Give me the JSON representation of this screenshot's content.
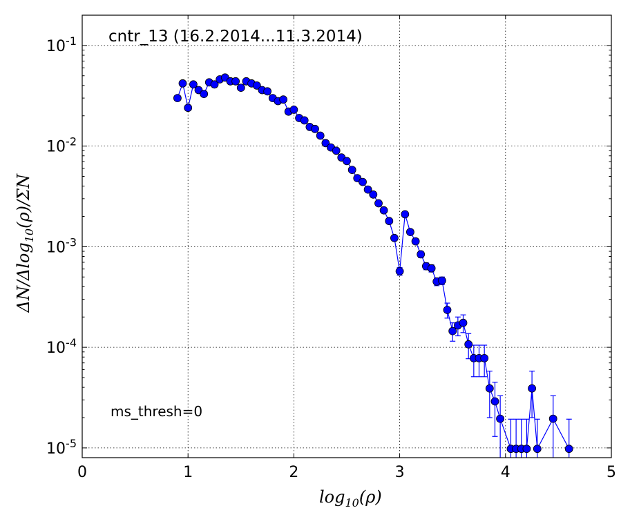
{
  "chart_data": {
    "type": "scatter",
    "title": "cntr_13 (16.2.2014...11.3.2014)",
    "annotation": "ms_thresh=0",
    "xlabel": "log10(ρ)",
    "ylabel": "ΔN/Δlog10(ρ)/ΣN",
    "xlim": [
      0,
      5
    ],
    "ylim": [
      8e-06,
      0.2
    ],
    "yscale": "log",
    "grid": true,
    "x_ticks": [
      0,
      1,
      2,
      3,
      4,
      5
    ],
    "x_tick_labels": [
      "0",
      "1",
      "2",
      "3",
      "4",
      "5"
    ],
    "y_ticks": [
      1e-05,
      0.0001,
      0.001,
      0.01,
      0.1
    ],
    "y_tick_labels": [
      {
        "base": "10",
        "exp": "-5"
      },
      {
        "base": "10",
        "exp": "-4"
      },
      {
        "base": "10",
        "exp": "-3"
      },
      {
        "base": "10",
        "exp": "-2"
      },
      {
        "base": "10",
        "exp": "-1"
      }
    ],
    "series_color": "#0000ff",
    "series": [
      {
        "marker": "circle",
        "line": true,
        "points": [
          {
            "x": 0.9,
            "y": 0.03,
            "err": 0
          },
          {
            "x": 0.95,
            "y": 0.042,
            "err": 0
          },
          {
            "x": 1.0,
            "y": 0.024,
            "err": 0
          },
          {
            "x": 1.05,
            "y": 0.041,
            "err": 0
          },
          {
            "x": 1.1,
            "y": 0.036,
            "err": 0
          },
          {
            "x": 1.15,
            "y": 0.033,
            "err": 0
          },
          {
            "x": 1.2,
            "y": 0.043,
            "err": 0
          },
          {
            "x": 1.25,
            "y": 0.041,
            "err": 0
          },
          {
            "x": 1.3,
            "y": 0.046,
            "err": 0
          },
          {
            "x": 1.35,
            "y": 0.048,
            "err": 0
          },
          {
            "x": 1.4,
            "y": 0.044,
            "err": 0
          },
          {
            "x": 1.45,
            "y": 0.044,
            "err": 0
          },
          {
            "x": 1.5,
            "y": 0.038,
            "err": 0
          },
          {
            "x": 1.55,
            "y": 0.044,
            "err": 0
          },
          {
            "x": 1.6,
            "y": 0.042,
            "err": 0
          },
          {
            "x": 1.65,
            "y": 0.04,
            "err": 0
          },
          {
            "x": 1.7,
            "y": 0.036,
            "err": 0
          },
          {
            "x": 1.75,
            "y": 0.035,
            "err": 0
          },
          {
            "x": 1.8,
            "y": 0.03,
            "err": 0
          },
          {
            "x": 1.85,
            "y": 0.028,
            "err": 0
          },
          {
            "x": 1.9,
            "y": 0.029,
            "err": 0
          },
          {
            "x": 1.95,
            "y": 0.022,
            "err": 0
          },
          {
            "x": 2.0,
            "y": 0.023,
            "err": 0
          },
          {
            "x": 2.05,
            "y": 0.019,
            "err": 0
          },
          {
            "x": 2.1,
            "y": 0.018,
            "err": 0
          },
          {
            "x": 2.15,
            "y": 0.0155,
            "err": 0
          },
          {
            "x": 2.2,
            "y": 0.0148,
            "err": 0
          },
          {
            "x": 2.25,
            "y": 0.0127,
            "err": 0
          },
          {
            "x": 2.3,
            "y": 0.0107,
            "err": 0
          },
          {
            "x": 2.35,
            "y": 0.0097,
            "err": 0
          },
          {
            "x": 2.4,
            "y": 0.009,
            "err": 0
          },
          {
            "x": 2.45,
            "y": 0.0077,
            "err": 0
          },
          {
            "x": 2.5,
            "y": 0.0071,
            "err": 0
          },
          {
            "x": 2.55,
            "y": 0.0058,
            "err": 0
          },
          {
            "x": 2.6,
            "y": 0.0048,
            "err": 0
          },
          {
            "x": 2.65,
            "y": 0.0044,
            "err": 0
          },
          {
            "x": 2.7,
            "y": 0.0037,
            "err": 0
          },
          {
            "x": 2.75,
            "y": 0.0033,
            "err": 0
          },
          {
            "x": 2.8,
            "y": 0.0027,
            "err": 0
          },
          {
            "x": 2.85,
            "y": 0.0023,
            "err": 0
          },
          {
            "x": 2.9,
            "y": 0.0018,
            "err": 0
          },
          {
            "x": 2.95,
            "y": 0.00122,
            "err": 6e-05
          },
          {
            "x": 3.0,
            "y": 0.00057,
            "err": 5e-05
          },
          {
            "x": 3.05,
            "y": 0.0021,
            "err": 0.0001
          },
          {
            "x": 3.1,
            "y": 0.0014,
            "err": 8e-05
          },
          {
            "x": 3.15,
            "y": 0.00113,
            "err": 7e-05
          },
          {
            "x": 3.2,
            "y": 0.00084,
            "err": 6e-05
          },
          {
            "x": 3.25,
            "y": 0.00064,
            "err": 5e-05
          },
          {
            "x": 3.3,
            "y": 0.00061,
            "err": 5e-05
          },
          {
            "x": 3.35,
            "y": 0.00045,
            "err": 4e-05
          },
          {
            "x": 3.4,
            "y": 0.00046,
            "err": 4e-05
          },
          {
            "x": 3.45,
            "y": 0.000235,
            "err": 4e-05
          },
          {
            "x": 3.5,
            "y": 0.000145,
            "err": 3e-05
          },
          {
            "x": 3.55,
            "y": 0.000165,
            "err": 3.5e-05
          },
          {
            "x": 3.6,
            "y": 0.000175,
            "err": 3.5e-05
          },
          {
            "x": 3.65,
            "y": 0.000107,
            "err": 3e-05
          },
          {
            "x": 3.7,
            "y": 7.8e-05,
            "err": 2.7e-05
          },
          {
            "x": 3.75,
            "y": 7.8e-05,
            "err": 2.7e-05
          },
          {
            "x": 3.8,
            "y": 7.8e-05,
            "err": 2.7e-05
          },
          {
            "x": 3.85,
            "y": 3.9e-05,
            "err": 1.9e-05
          },
          {
            "x": 3.9,
            "y": 2.9e-05,
            "err": 1.6e-05
          },
          {
            "x": 3.95,
            "y": 1.95e-05,
            "err": 1.35e-05
          },
          {
            "x": 4.05,
            "y": 9.8e-06,
            "err": 9.5e-06
          },
          {
            "x": 4.1,
            "y": 9.8e-06,
            "err": 9.5e-06
          },
          {
            "x": 4.15,
            "y": 9.8e-06,
            "err": 9.5e-06
          },
          {
            "x": 4.2,
            "y": 9.8e-06,
            "err": 9.5e-06
          },
          {
            "x": 4.25,
            "y": 3.9e-05,
            "err": 1.9e-05
          },
          {
            "x": 4.3,
            "y": 9.8e-06,
            "err": 9.5e-06
          },
          {
            "x": 4.45,
            "y": 1.95e-05,
            "err": 1.35e-05
          },
          {
            "x": 4.6,
            "y": 9.8e-06,
            "err": 9.5e-06
          }
        ]
      }
    ]
  }
}
